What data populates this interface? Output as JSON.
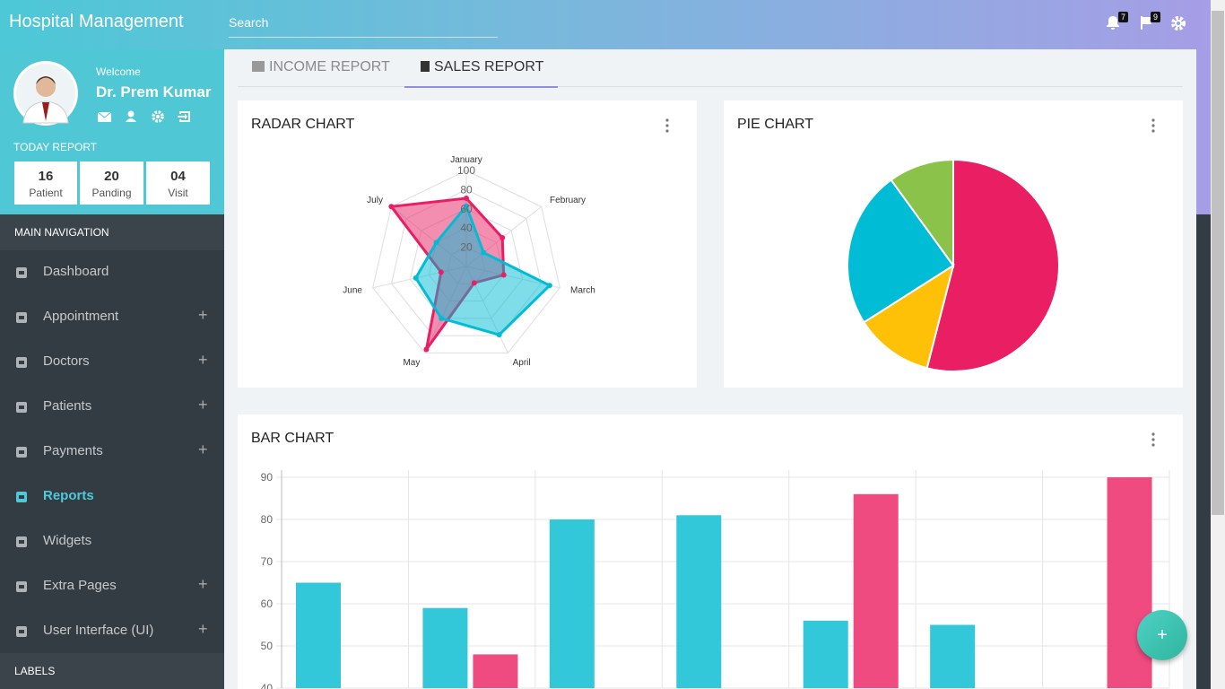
{
  "header": {
    "brand": "Hospital Management",
    "search_placeholder": "Search",
    "notifications": "7",
    "flags": "9"
  },
  "profile": {
    "welcome": "Welcome",
    "name": "Dr. Prem Kumar"
  },
  "today_report": {
    "title": "TODAY REPORT",
    "items": [
      {
        "value": "16",
        "label": "Patient"
      },
      {
        "value": "20",
        "label": "Panding"
      },
      {
        "value": "04",
        "label": "Visit"
      }
    ]
  },
  "navigation": {
    "title": "MAIN NAVIGATION",
    "expand_icon": "+",
    "items": [
      {
        "label": "Dashboard",
        "expandable": false
      },
      {
        "label": "Appointment",
        "expandable": true
      },
      {
        "label": "Doctors",
        "expandable": true
      },
      {
        "label": "Patients",
        "expandable": true
      },
      {
        "label": "Payments",
        "expandable": true
      },
      {
        "label": "Reports",
        "expandable": false,
        "active": true
      },
      {
        "label": "Widgets",
        "expandable": false
      },
      {
        "label": "Extra Pages",
        "expandable": true
      },
      {
        "label": "User Interface (UI)",
        "expandable": true
      }
    ]
  },
  "labels_title": "LABELS",
  "tabs": {
    "items": [
      "INCOME REPORT",
      "SALES REPORT"
    ],
    "active": 1
  },
  "fab": "+",
  "chart_data": [
    {
      "type": "radar",
      "title": "RADAR CHART",
      "categories": [
        "January",
        "February",
        "March",
        "April",
        "May",
        "June",
        "July"
      ],
      "rlim": [
        0,
        100
      ],
      "rticks": [
        20,
        40,
        60,
        80,
        100
      ],
      "series": [
        {
          "color": "#e91e63",
          "values": [
            71,
            48,
            40,
            19,
            96,
            27,
            100
          ]
        },
        {
          "color": "#00bcd4",
          "values": [
            63,
            23,
            89,
            79,
            60,
            54,
            40
          ]
        }
      ]
    },
    {
      "type": "pie",
      "title": "PIE CHART",
      "values": [
        54,
        12,
        24,
        10
      ],
      "colors": [
        "#e91e63",
        "#ffc107",
        "#00bcd4",
        "#8bc34a"
      ]
    },
    {
      "type": "bar",
      "title": "BAR CHART",
      "ylim": [
        40,
        90
      ],
      "yticks": [
        40,
        50,
        60,
        70,
        80,
        90
      ],
      "grid": true,
      "series": [
        {
          "color": "#33c7da",
          "values": [
            65,
            59,
            80,
            81,
            56,
            55,
            40
          ]
        },
        {
          "color": "#ef4b80",
          "values": [
            null,
            48,
            40,
            null,
            86,
            null,
            90
          ]
        }
      ]
    }
  ]
}
